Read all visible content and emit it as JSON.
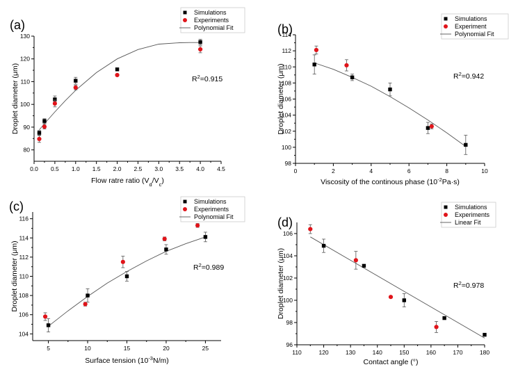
{
  "figure": {
    "background": "#ffffff",
    "colors": {
      "simulations": "#000000",
      "experiments": "#e0141a",
      "fit": "#555555",
      "axis": "#000000"
    }
  },
  "chart_data": [
    {
      "id": "a",
      "panel_label": "(a)",
      "type": "scatter",
      "xlabel": "Flow ratre ratio (V_d/V_c)",
      "xlabel_parts": {
        "base": "Flow ratre ratio (V",
        "sub1": "d",
        "mid": "/V",
        "sub2": "c",
        "end": ")"
      },
      "ylabel": "Droplet diameter (μm)",
      "xlim": [
        0,
        4.5
      ],
      "ylim": [
        75,
        130
      ],
      "xticks": [
        0.0,
        0.5,
        1.0,
        1.5,
        2.0,
        2.5,
        3.0,
        3.5,
        4.0,
        4.5
      ],
      "xtick_labels": [
        "0.0",
        "0.5",
        "1.0",
        "1.5",
        "2.0",
        "2.5",
        "3.0",
        "3.5",
        "4.0",
        "4.5"
      ],
      "yticks": [
        80,
        90,
        100,
        110,
        120,
        130
      ],
      "ytick_labels": [
        "80",
        "90",
        "100",
        "110",
        "120",
        "130"
      ],
      "legend": [
        "Simulations",
        "Experiments",
        "Polynomial Fit"
      ],
      "legend_position": "top-right",
      "annotation": {
        "text": "R²=0.915",
        "base": "R",
        "sup": "2",
        "rest": "=0.915"
      },
      "series": [
        {
          "name": "Simulations",
          "marker": "square",
          "x": [
            0.125,
            0.25,
            0.5,
            1.0,
            2.0,
            4.0
          ],
          "y": [
            87.5,
            92.7,
            102.2,
            110.4,
            115.4,
            127.4
          ],
          "err": [
            1,
            1,
            1.5,
            1.5,
            0.5,
            1.2
          ]
        },
        {
          "name": "Experiments",
          "marker": "circle",
          "x": [
            0.125,
            0.25,
            0.5,
            1.0,
            2.0,
            4.0
          ],
          "y": [
            84.8,
            90.2,
            100.4,
            107.4,
            112.9,
            124.2
          ],
          "err": [
            1.5,
            1,
            1.5,
            1,
            0.5,
            1.5
          ]
        }
      ],
      "fit": {
        "name": "Polynomial Fit",
        "x": [
          0.125,
          0.25,
          0.5,
          0.75,
          1.0,
          1.5,
          2.0,
          2.5,
          3.0,
          3.5,
          3.75,
          4.0
        ],
        "y": [
          88.8,
          91.5,
          96.7,
          101.6,
          106.2,
          114.0,
          120.0,
          124.1,
          126.5,
          127.1,
          127.2,
          127.2
        ]
      }
    },
    {
      "id": "b",
      "panel_label": "(b)",
      "type": "scatter",
      "xlabel": "Viscosity of  the continous phase (10⁻²Pa·s)",
      "xlabel_parts": {
        "base": "Viscosity of  the continous phase (10",
        "sup": "-2",
        "end": "Pa·s)"
      },
      "ylabel": "Droplet diameter (μm)",
      "xlim": [
        0,
        10
      ],
      "ylim": [
        98,
        114
      ],
      "xticks": [
        0,
        2,
        4,
        6,
        8,
        10
      ],
      "xtick_labels": [
        "0",
        "2",
        "4",
        "6",
        "8",
        "10"
      ],
      "yticks": [
        98,
        100,
        102,
        104,
        106,
        108,
        110,
        112,
        114
      ],
      "ytick_labels": [
        "98",
        "100",
        "102",
        "104",
        "106",
        "108",
        "110",
        "112",
        "114"
      ],
      "legend": [
        "Simulations",
        "Experiment",
        "Polynomial Fit"
      ],
      "legend_position": "top-right",
      "annotation": {
        "text": "R²=0.942",
        "base": "R",
        "sup": "2",
        "rest": "=0.942"
      },
      "series": [
        {
          "name": "Simulations",
          "marker": "square",
          "x": [
            1,
            3,
            5,
            7,
            9
          ],
          "y": [
            110.3,
            108.7,
            107.2,
            102.4,
            100.3
          ],
          "err": [
            1.2,
            0.4,
            0.8,
            0.7,
            1.2
          ]
        },
        {
          "name": "Experiment",
          "marker": "circle",
          "x": [
            1.1,
            2.7,
            7.2
          ],
          "y": [
            112.1,
            110.2,
            102.6
          ],
          "err": [
            0.5,
            0.7,
            0.3
          ]
        }
      ],
      "fit": {
        "name": "Polynomial Fit",
        "x": [
          1,
          2,
          3,
          4,
          5,
          6,
          7,
          8,
          9
        ],
        "y": [
          110.5,
          109.7,
          108.7,
          107.6,
          106.3,
          104.9,
          103.4,
          101.8,
          100.1
        ]
      }
    },
    {
      "id": "c",
      "panel_label": "(c)",
      "type": "scatter",
      "xlabel": "Surface tension (10⁻³N/m)",
      "xlabel_parts": {
        "base": "Surface tension (10",
        "sup": "-3",
        "end": "N/m)"
      },
      "ylabel": "Droplet diameter (μm)",
      "xlim": [
        3,
        27
      ],
      "ylim": [
        103.3,
        116.7
      ],
      "xticks": [
        5,
        10,
        15,
        20,
        25
      ],
      "xtick_labels": [
        "5",
        "10",
        "15",
        "20",
        "25"
      ],
      "yticks": [
        104,
        106,
        108,
        110,
        112,
        114,
        116
      ],
      "ytick_labels": [
        "104",
        "106",
        "108",
        "110",
        "112",
        "114",
        "116"
      ],
      "legend": [
        "Simulations",
        "Experiments",
        "Polynomial Fit"
      ],
      "legend_position": "top-right",
      "annotation": {
        "text": "R²=0.989",
        "base": "R",
        "sup": "2",
        "rest": "=0.989"
      },
      "series": [
        {
          "name": "Simulations",
          "marker": "square",
          "x": [
            5,
            10,
            15,
            20,
            25
          ],
          "y": [
            104.9,
            108.0,
            110.0,
            112.8,
            114.1
          ],
          "err": [
            0.7,
            0.7,
            0.5,
            0.5,
            0.5
          ]
        },
        {
          "name": "Experiments",
          "marker": "circle",
          "x": [
            4.6,
            9.7,
            14.5,
            19.8,
            24
          ],
          "y": [
            105.8,
            107.1,
            111.5,
            113.9,
            115.3
          ],
          "err": [
            0.4,
            0.2,
            0.6,
            0.2,
            0.2
          ]
        }
      ],
      "fit": {
        "name": "Polynomial Fit",
        "x": [
          5,
          7.5,
          10,
          12.5,
          15,
          17.5,
          20,
          22.5,
          25
        ],
        "y": [
          104.8,
          106.4,
          107.9,
          109.3,
          110.5,
          111.6,
          112.6,
          113.4,
          114.1
        ]
      }
    },
    {
      "id": "d",
      "panel_label": "(d)",
      "type": "scatter",
      "xlabel": "Contact angle (°)",
      "ylabel": "Droplet diameter (μm)",
      "xlim": [
        110,
        180
      ],
      "ylim": [
        96,
        107
      ],
      "xticks": [
        110,
        120,
        130,
        140,
        150,
        160,
        170,
        180
      ],
      "xtick_labels": [
        "110",
        "120",
        "130",
        "140",
        "150",
        "160",
        "170",
        "180"
      ],
      "yticks": [
        96,
        98,
        100,
        102,
        104,
        106
      ],
      "ytick_labels": [
        "96",
        "98",
        "100",
        "102",
        "104",
        "106"
      ],
      "legend": [
        "Simulations",
        "Experiments",
        "Linear Fit"
      ],
      "legend_position": "top-right",
      "annotation": {
        "text": "R²=0.978",
        "base": "R",
        "sup": "2",
        "rest": "=0.978"
      },
      "series": [
        {
          "name": "Simulations",
          "marker": "square",
          "x": [
            120,
            135,
            150,
            165,
            180
          ],
          "y": [
            104.9,
            103.1,
            100.0,
            98.4,
            96.9
          ],
          "err": [
            0.6,
            0,
            0.6,
            0,
            0
          ]
        },
        {
          "name": "Experiments",
          "marker": "circle",
          "x": [
            115,
            132,
            145,
            162
          ],
          "y": [
            106.4,
            103.6,
            100.3,
            97.6
          ],
          "err": [
            0.4,
            0.8,
            0,
            0.5
          ]
        }
      ],
      "fit": {
        "name": "Linear Fit",
        "x": [
          115,
          180
        ],
        "y": [
          105.7,
          96.6
        ]
      }
    }
  ]
}
